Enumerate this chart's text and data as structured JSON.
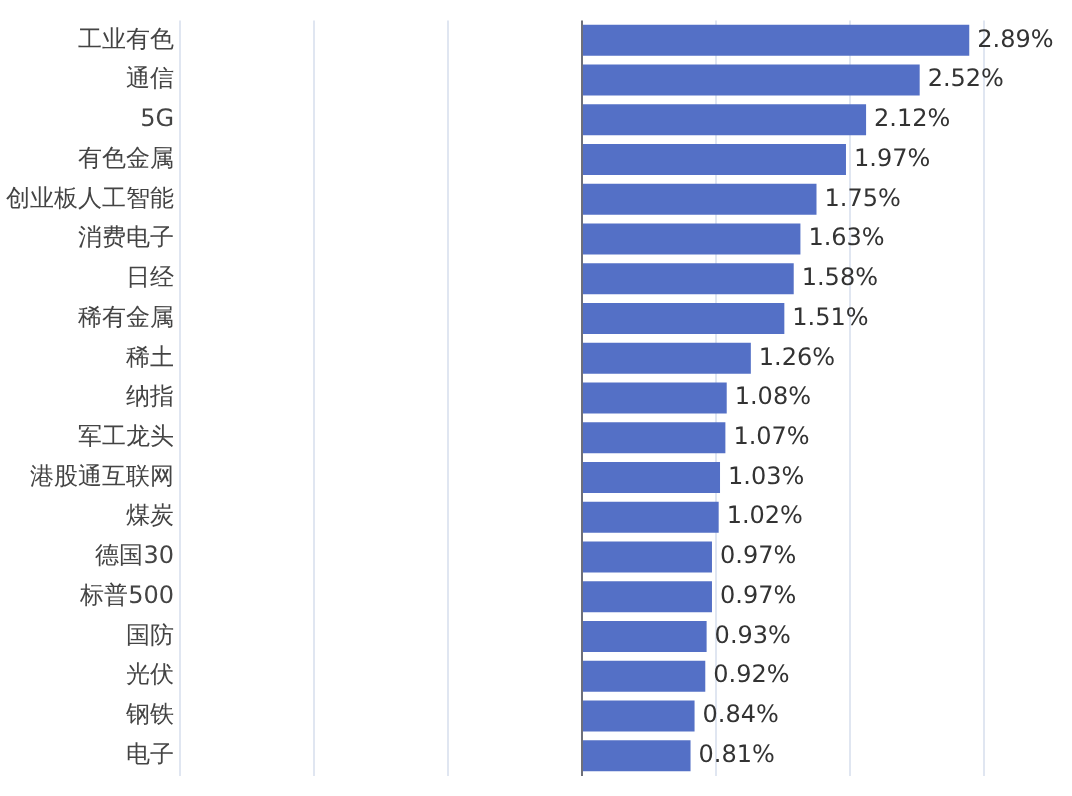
{
  "chart_data": {
    "type": "bar",
    "orientation": "horizontal",
    "categories": [
      "工业有色",
      "通信",
      "5G",
      "有色金属",
      "创业板人工智能",
      "消费电子",
      "日经",
      "稀有金属",
      "稀土",
      "纳指",
      "军工龙头",
      "港股通互联网",
      "煤炭",
      "德国30",
      "标普500",
      "国防",
      "光伏",
      "钢铁",
      "电子"
    ],
    "values": [
      2.89,
      2.52,
      2.12,
      1.97,
      1.75,
      1.63,
      1.58,
      1.51,
      1.26,
      1.08,
      1.07,
      1.03,
      1.02,
      0.97,
      0.97,
      0.93,
      0.92,
      0.84,
      0.81
    ],
    "value_labels": [
      "2.89%",
      "2.52%",
      "2.12%",
      "1.97%",
      "1.75%",
      "1.63%",
      "1.58%",
      "1.51%",
      "1.26%",
      "1.08%",
      "1.07%",
      "1.03%",
      "1.02%",
      "0.97%",
      "0.97%",
      "0.93%",
      "0.92%",
      "0.84%",
      "0.81%"
    ],
    "color": "#5470c6",
    "xlim": [
      -3,
      3
    ],
    "xticks": [
      {
        "value": -3,
        "label": null
      },
      {
        "value": -2,
        "label": null
      },
      {
        "value": -1,
        "label": null
      },
      {
        "value": 0,
        "label": null
      },
      {
        "value": 1,
        "label": null
      },
      {
        "value": 2,
        "label": null
      },
      {
        "value": 3,
        "label": null
      }
    ],
    "grid": "x",
    "tick_labels": "y",
    "legend": false
  }
}
